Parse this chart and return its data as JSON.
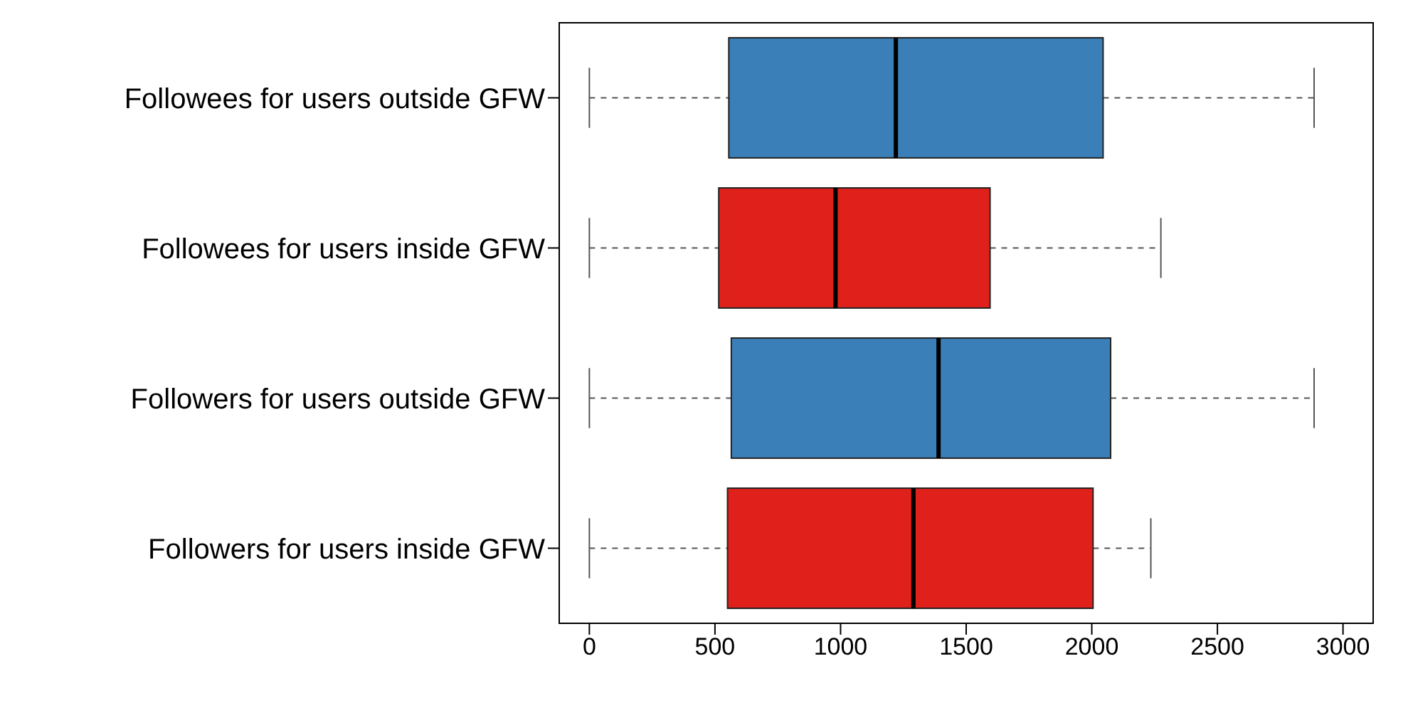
{
  "chart_data": {
    "type": "box",
    "orientation": "horizontal",
    "categories": [
      "Followees for users outside GFW",
      "Followees for users inside GFW",
      "Followers for users outside GFW",
      "Followers for users inside GFW"
    ],
    "boxes": [
      {
        "low": 0,
        "q1": 555,
        "median": 1220,
        "q3": 2045,
        "high": 2885
      },
      {
        "low": 0,
        "q1": 515,
        "median": 980,
        "q3": 1595,
        "high": 2275
      },
      {
        "low": 0,
        "q1": 565,
        "median": 1390,
        "q3": 2075,
        "high": 2885
      },
      {
        "low": 0,
        "q1": 550,
        "median": 1290,
        "q3": 2005,
        "high": 2235
      }
    ],
    "colors": [
      "#3a7fb8",
      "#e0201b",
      "#3a7fb8",
      "#e0201b"
    ],
    "xlim": [
      -120,
      3120
    ],
    "xticks": [
      0,
      500,
      1000,
      1500,
      2000,
      2500,
      3000
    ]
  }
}
